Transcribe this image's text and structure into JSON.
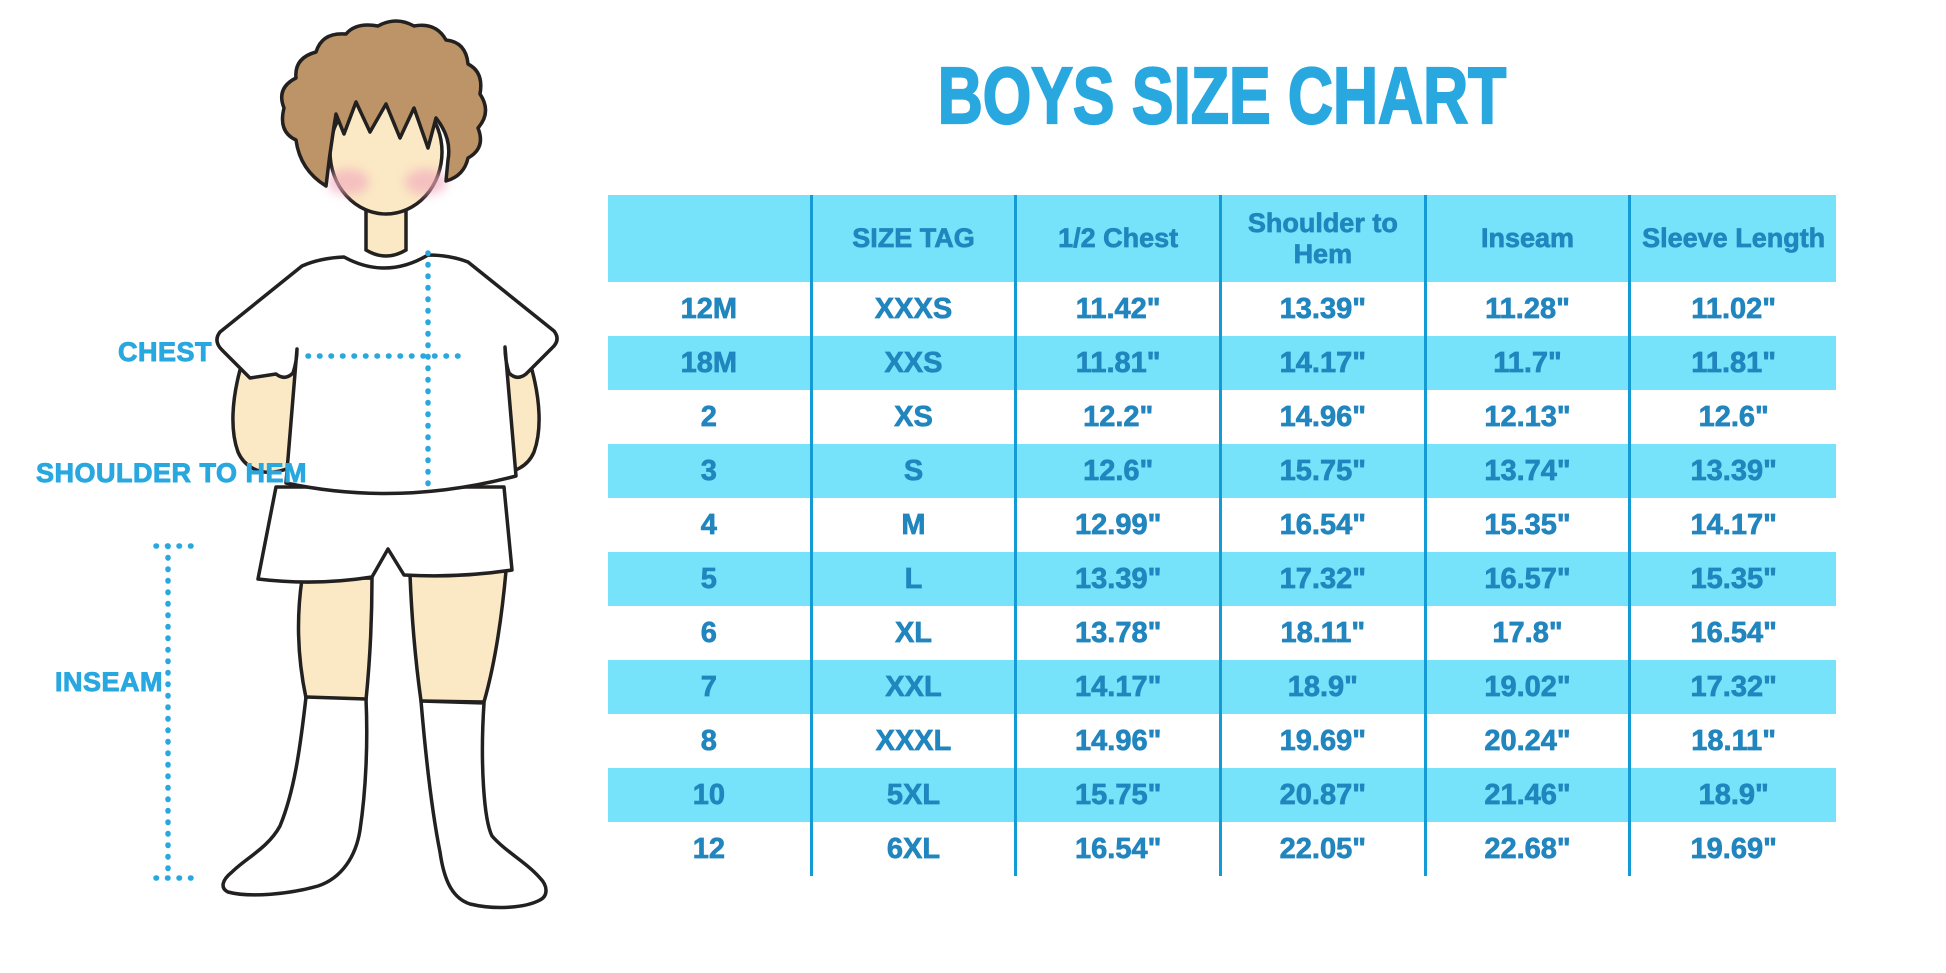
{
  "title": "BOYS SIZE CHART",
  "labels": {
    "chest": "CHEST",
    "shoulder_to_hem": "SHOULDER TO HEM",
    "inseam": "INSEAM"
  },
  "colors": {
    "accent": "#29A8E0",
    "table_fill": "#77E3FA",
    "table_divider": "#149BD6",
    "table_text": "#2185BE"
  },
  "chart_data": {
    "type": "table",
    "title": "BOYS SIZE CHART",
    "columns": [
      "",
      "SIZE TAG",
      "1/2 Chest",
      "Shoulder to Hem",
      "Inseam",
      "Sleeve Length"
    ],
    "rows": [
      [
        "12M",
        "XXXS",
        "11.42\"",
        "13.39\"",
        "11.28\"",
        "11.02\""
      ],
      [
        "18M",
        "XXS",
        "11.81\"",
        "14.17\"",
        "11.7\"",
        "11.81\""
      ],
      [
        "2",
        "XS",
        "12.2\"",
        "14.96\"",
        "12.13\"",
        "12.6\""
      ],
      [
        "3",
        "S",
        "12.6\"",
        "15.75\"",
        "13.74\"",
        "13.39\""
      ],
      [
        "4",
        "M",
        "12.99\"",
        "16.54\"",
        "15.35\"",
        "14.17\""
      ],
      [
        "5",
        "L",
        "13.39\"",
        "17.32\"",
        "16.57\"",
        "15.35\""
      ],
      [
        "6",
        "XL",
        "13.78\"",
        "18.11\"",
        "17.8\"",
        "16.54\""
      ],
      [
        "7",
        "XXL",
        "14.17\"",
        "18.9\"",
        "19.02\"",
        "17.32\""
      ],
      [
        "8",
        "XXXL",
        "14.96\"",
        "19.69\"",
        "20.24\"",
        "18.11\""
      ],
      [
        "10",
        "5XL",
        "15.75\"",
        "20.87\"",
        "21.46\"",
        "18.9\""
      ],
      [
        "12",
        "6XL",
        "16.54\"",
        "22.05\"",
        "22.68\"",
        "19.69\""
      ]
    ],
    "stripe_pattern": "alternating rows white / light blue, starting white",
    "legend_position": "none",
    "grid": "vertical column dividers only"
  }
}
